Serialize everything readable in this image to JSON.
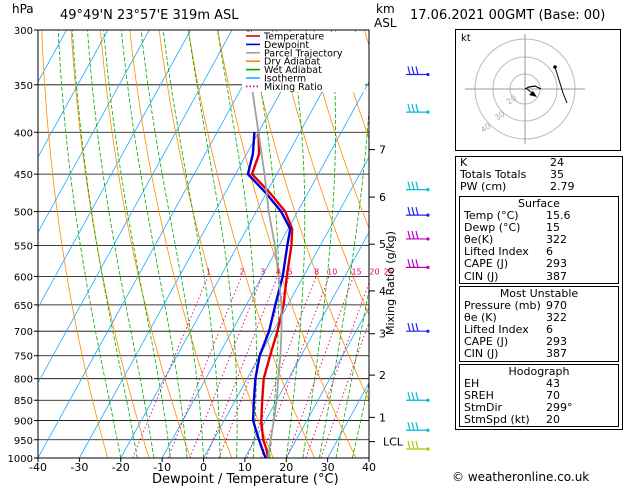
{
  "header": {
    "hpa_label": "hPa",
    "location": "49°49'N  23°57'E  319m  ASL",
    "km_label": "km",
    "asl_label": "ASL",
    "datetime": "17.06.2021  00GMT  (Base: 00)"
  },
  "chart_data": {
    "type": "skew-t log-p",
    "xlabel": "Dewpoint / Temperature (°C)",
    "ylabel_right": "Mixing Ratio (g/kg)",
    "x_ticks": [
      -40,
      -30,
      -20,
      -10,
      0,
      10,
      20,
      30,
      40
    ],
    "x_tick_labels": [
      "-40",
      "-30",
      "-20",
      "-10",
      "0",
      "10",
      "20",
      "30",
      "40"
    ],
    "pressure_levels": [
      300,
      350,
      400,
      450,
      500,
      550,
      600,
      650,
      700,
      750,
      800,
      850,
      900,
      950,
      1000
    ],
    "pressure_labels": [
      "300",
      "350",
      "400",
      "450",
      "500",
      "550",
      "600",
      "650",
      "700",
      "750",
      "800",
      "850",
      "900",
      "950",
      "1000"
    ],
    "km_ticks": [
      {
        "label": "7",
        "p": 420
      },
      {
        "label": "6",
        "p": 480
      },
      {
        "label": "5",
        "p": 548
      },
      {
        "label": "4",
        "p": 625
      },
      {
        "label": "3",
        "p": 705
      },
      {
        "label": "2",
        "p": 792
      },
      {
        "label": "1",
        "p": 892
      },
      {
        "label": "LCL",
        "p": 955
      }
    ],
    "mixing_ratio_labels": [
      "1",
      "2",
      "3",
      "4",
      "5",
      "8",
      "10",
      "15",
      "20",
      "25"
    ],
    "legend": [
      {
        "name": "Temperature",
        "color": "#e00000",
        "style": "solid"
      },
      {
        "name": "Dewpoint",
        "color": "#0000dd",
        "style": "solid"
      },
      {
        "name": "Parcel Trajectory",
        "color": "#a0a0a0",
        "style": "solid"
      },
      {
        "name": "Dry Adiabat",
        "color": "#ff8c00",
        "style": "solid"
      },
      {
        "name": "Wet Adiabat",
        "color": "#00aa00",
        "style": "solid"
      },
      {
        "name": "Isotherm",
        "color": "#1eaaff",
        "style": "solid"
      },
      {
        "name": "Mixing Ratio",
        "color": "#e0007a",
        "style": "dotted"
      }
    ],
    "series": [
      {
        "name": "Temperature",
        "color": "#e00000",
        "points": [
          [
            1000,
            15.6
          ],
          [
            975,
            14
          ],
          [
            950,
            12
          ],
          [
            925,
            10.5
          ],
          [
            900,
            9
          ],
          [
            850,
            6.5
          ],
          [
            800,
            4
          ],
          [
            750,
            2.5
          ],
          [
            700,
            1
          ],
          [
            650,
            -1
          ],
          [
            600,
            -4
          ],
          [
            550,
            -7
          ],
          [
            525,
            -9
          ],
          [
            500,
            -13
          ],
          [
            475,
            -19
          ],
          [
            450,
            -26
          ],
          [
            425,
            -27
          ],
          [
            400,
            -30
          ]
        ]
      },
      {
        "name": "Dewpoint",
        "color": "#0000dd",
        "points": [
          [
            1000,
            15
          ],
          [
            975,
            13
          ],
          [
            950,
            11
          ],
          [
            925,
            9
          ],
          [
            900,
            7
          ],
          [
            850,
            4.5
          ],
          [
            800,
            2
          ],
          [
            750,
            0
          ],
          [
            700,
            -1
          ],
          [
            650,
            -3
          ],
          [
            600,
            -5
          ],
          [
            550,
            -8
          ],
          [
            525,
            -9.5
          ],
          [
            500,
            -14
          ],
          [
            475,
            -20
          ],
          [
            450,
            -27
          ],
          [
            425,
            -28.5
          ],
          [
            400,
            -31
          ]
        ]
      },
      {
        "name": "Parcel Trajectory",
        "color": "#a0a0a0",
        "points": [
          [
            1000,
            15.6
          ],
          [
            955,
            14
          ],
          [
            900,
            12
          ],
          [
            850,
            10
          ],
          [
            800,
            7.5
          ],
          [
            750,
            5
          ],
          [
            700,
            2
          ],
          [
            650,
            -1.5
          ],
          [
            600,
            -6
          ],
          [
            550,
            -11
          ],
          [
            500,
            -17
          ],
          [
            450,
            -23
          ],
          [
            400,
            -30
          ],
          [
            350,
            -38
          ],
          [
            300,
            -46
          ]
        ]
      }
    ],
    "wind_barbs": [
      {
        "p": 340,
        "color": "#2020ff"
      },
      {
        "p": 378,
        "color": "#00bbdd"
      },
      {
        "p": 470,
        "color": "#00bbdd"
      },
      {
        "p": 505,
        "color": "#2020ff"
      },
      {
        "p": 540,
        "color": "#c000c0"
      },
      {
        "p": 585,
        "color": "#c000c0"
      },
      {
        "p": 700,
        "color": "#2020ff"
      },
      {
        "p": 850,
        "color": "#00bbdd"
      },
      {
        "p": 925,
        "color": "#00bbdd"
      },
      {
        "p": 975,
        "color": "#a0d000"
      }
    ]
  },
  "hodograph": {
    "label": "kt",
    "ring_labels": [
      "20",
      "30",
      "40"
    ]
  },
  "indices": {
    "rows": [
      {
        "label": "K",
        "value": "24"
      },
      {
        "label": "Totals Totals",
        "value": "35"
      },
      {
        "label": "PW (cm)",
        "value": "2.79"
      }
    ]
  },
  "surface": {
    "title": "Surface",
    "rows": [
      {
        "label": "Temp (°C)",
        "value": "15.6"
      },
      {
        "label": "Dewp (°C)",
        "value": "15"
      },
      {
        "label": "θe(K)",
        "value": "322"
      },
      {
        "label": "Lifted Index",
        "value": "6"
      },
      {
        "label": "CAPE (J)",
        "value": "293"
      },
      {
        "label": "CIN (J)",
        "value": "387"
      }
    ]
  },
  "unstable": {
    "title": "Most Unstable",
    "rows": [
      {
        "label": "Pressure (mb)",
        "value": "970"
      },
      {
        "label": "θe (K)",
        "value": "322"
      },
      {
        "label": "Lifted Index",
        "value": "6"
      },
      {
        "label": "CAPE (J)",
        "value": "293"
      },
      {
        "label": "CIN (J)",
        "value": "387"
      }
    ]
  },
  "hodo_table": {
    "title": "Hodograph",
    "rows": [
      {
        "label": "EH",
        "value": "43"
      },
      {
        "label": "SREH",
        "value": "70"
      },
      {
        "label": "StmDir",
        "value": "299°"
      },
      {
        "label": "StmSpd (kt)",
        "value": "20"
      }
    ]
  },
  "footer": {
    "copyright": "© weatheronline.co.uk"
  }
}
